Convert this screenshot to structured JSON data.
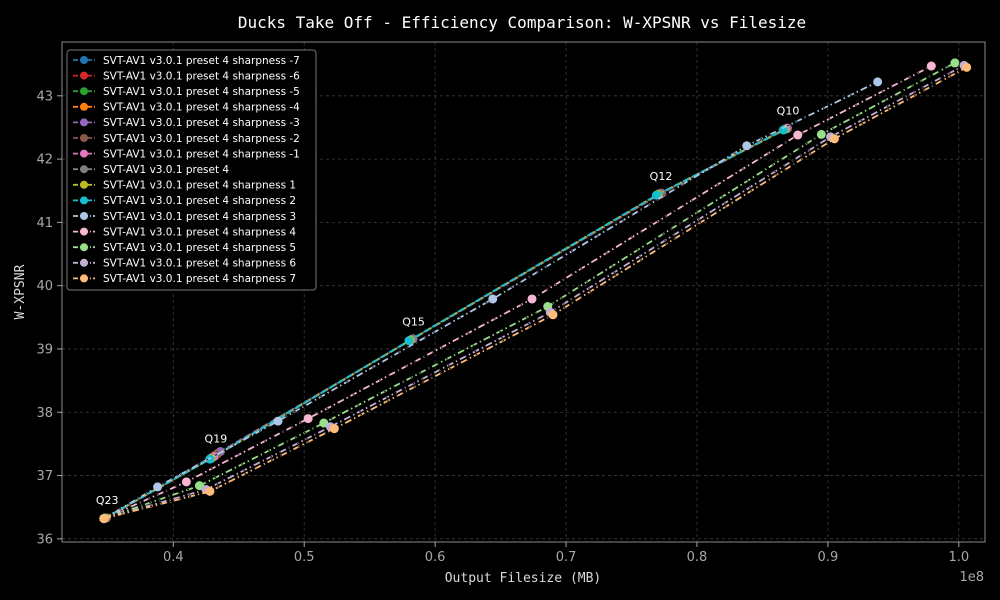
{
  "chart_data": {
    "type": "line",
    "title": "Ducks Take Off - Efficiency Comparison: W-XPSNR vs Filesize",
    "xlabel": "Output Filesize (MB)",
    "ylabel": "W-XPSNR",
    "x_multiplier_label": "1e8",
    "xlim": [
      0.315,
      1.02
    ],
    "ylim": [
      35.95,
      43.85
    ],
    "xticks": [
      0.4,
      0.5,
      0.6,
      0.7,
      0.8,
      0.9,
      1.0
    ],
    "xtick_labels": [
      "0.4",
      "0.5",
      "0.6",
      "0.7",
      "0.8",
      "0.9",
      "1.0"
    ],
    "yticks": [
      36,
      37,
      38,
      39,
      40,
      41,
      42,
      43
    ],
    "ytick_labels": [
      "36",
      "37",
      "38",
      "39",
      "40",
      "41",
      "42",
      "43"
    ],
    "grid": true,
    "legend_position": "top-left",
    "annotations": [
      {
        "text": "Q23",
        "x": 0.348,
        "y": 36.33
      },
      {
        "text": "Q19",
        "x": 0.431,
        "y": 37.3
      },
      {
        "text": "Q15",
        "x": 0.582,
        "y": 39.15
      },
      {
        "text": "Q12",
        "x": 0.771,
        "y": 41.45
      },
      {
        "text": "Q10",
        "x": 0.868,
        "y": 42.48
      }
    ],
    "series": [
      {
        "name": "SVT-AV1 v3.0.1 preset 4 sharpness -7",
        "color": "#1f77b4",
        "line": "dashed",
        "x": [
          0.348,
          0.431,
          0.582,
          0.771,
          0.868
        ],
        "y": [
          36.33,
          37.3,
          39.15,
          41.45,
          42.48
        ]
      },
      {
        "name": "SVT-AV1 v3.0.1 preset 4 sharpness -6",
        "color": "#d62728",
        "line": "dashed",
        "x": [
          0.348,
          0.432,
          0.582,
          0.772,
          0.868
        ],
        "y": [
          36.33,
          37.31,
          39.15,
          41.45,
          42.48
        ]
      },
      {
        "name": "SVT-AV1 v3.0.1 preset 4 sharpness -5",
        "color": "#2ca02c",
        "line": "dashed",
        "x": [
          0.348,
          0.432,
          0.583,
          0.772,
          0.869
        ],
        "y": [
          36.33,
          37.32,
          39.16,
          41.46,
          42.48
        ]
      },
      {
        "name": "SVT-AV1 v3.0.1 preset 4 sharpness -4",
        "color": "#ff7f0e",
        "line": "dashed",
        "x": [
          0.349,
          0.434,
          0.583,
          0.773,
          0.869
        ],
        "y": [
          36.33,
          37.35,
          39.16,
          41.46,
          42.49
        ]
      },
      {
        "name": "SVT-AV1 v3.0.1 preset 4 sharpness -3",
        "color": "#9467bd",
        "line": "dashed",
        "x": [
          0.349,
          0.436,
          0.583,
          0.773,
          0.869
        ],
        "y": [
          36.33,
          37.38,
          39.16,
          41.46,
          42.49
        ]
      },
      {
        "name": "SVT-AV1 v3.0.1 preset 4 sharpness -2",
        "color": "#8c564b",
        "line": "dashed",
        "x": [
          0.349,
          0.433,
          0.582,
          0.772,
          0.868
        ],
        "y": [
          36.33,
          37.33,
          39.15,
          41.45,
          42.48
        ]
      },
      {
        "name": "SVT-AV1 v3.0.1 preset 4 sharpness -1",
        "color": "#e377c2",
        "line": "dashed",
        "x": [
          0.348,
          0.431,
          0.582,
          0.771,
          0.868
        ],
        "y": [
          36.33,
          37.3,
          39.15,
          41.45,
          42.48
        ]
      },
      {
        "name": "SVT-AV1 v3.0.1 preset 4",
        "color": "#7f7f7f",
        "line": "dashed",
        "x": [
          0.348,
          0.429,
          0.582,
          0.771,
          0.867
        ],
        "y": [
          36.33,
          37.28,
          39.15,
          41.45,
          42.47
        ]
      },
      {
        "name": "SVT-AV1 v3.0.1 preset 4 sharpness 1",
        "color": "#bcbd22",
        "line": "dashed",
        "x": [
          0.348,
          0.429,
          0.581,
          0.77,
          0.867
        ],
        "y": [
          36.33,
          37.27,
          39.14,
          41.44,
          42.47
        ]
      },
      {
        "name": "SVT-AV1 v3.0.1 preset 4 sharpness 2",
        "color": "#17becf",
        "line": "dashed",
        "x": [
          0.347,
          0.428,
          0.58,
          0.769,
          0.866
        ],
        "y": [
          36.32,
          37.26,
          39.13,
          41.43,
          42.46
        ]
      },
      {
        "name": "SVT-AV1 v3.0.1 preset 4 sharpness 3",
        "color": "#aec7e8",
        "line": "dashdot",
        "x": [
          0.347,
          0.388,
          0.48,
          0.644,
          0.838,
          0.938
        ],
        "y": [
          36.32,
          36.82,
          37.86,
          39.79,
          42.21,
          43.22
        ]
      },
      {
        "name": "SVT-AV1 v3.0.1 preset 4 sharpness 4",
        "color": "#f7b6d2",
        "line": "dashdot",
        "x": [
          0.347,
          0.41,
          0.503,
          0.674,
          0.877,
          0.979
        ],
        "y": [
          36.32,
          36.9,
          37.9,
          39.79,
          42.38,
          43.47
        ]
      },
      {
        "name": "SVT-AV1 v3.0.1 preset 4 sharpness 5",
        "color": "#98df8a",
        "line": "dashdot",
        "x": [
          0.347,
          0.42,
          0.515,
          0.686,
          0.895,
          0.997
        ],
        "y": [
          36.32,
          36.84,
          37.83,
          39.67,
          42.39,
          43.52
        ]
      },
      {
        "name": "SVT-AV1 v3.0.1 preset 4 sharpness 6",
        "color": "#c5b0d5",
        "line": "dashdot",
        "x": [
          0.347,
          0.425,
          0.52,
          0.688,
          0.902,
          1.004
        ],
        "y": [
          36.32,
          36.78,
          37.77,
          39.58,
          42.35,
          43.48
        ]
      },
      {
        "name": "SVT-AV1 v3.0.1 preset 4 sharpness 7",
        "color": "#ffbb78",
        "line": "dashdot",
        "x": [
          0.347,
          0.428,
          0.523,
          0.69,
          0.905,
          1.006
        ],
        "y": [
          36.32,
          36.75,
          37.74,
          39.54,
          42.32,
          43.45
        ]
      }
    ]
  }
}
